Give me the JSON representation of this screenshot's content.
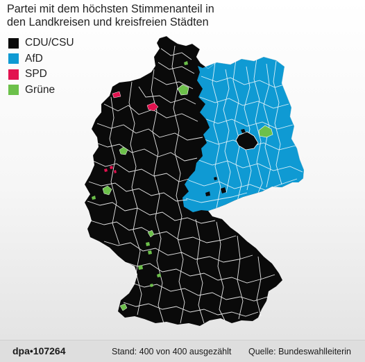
{
  "title_line1": "Partei mit dem höchsten Stimmenanteil in",
  "title_line2": "den Landkreisen und kreisfreien Städten",
  "legend": [
    {
      "label": "CDU/CSU",
      "color": "#0a0a0a"
    },
    {
      "label": "AfD",
      "color": "#0f9ad3"
    },
    {
      "label": "SPD",
      "color": "#e2124f"
    },
    {
      "label": "Grüne",
      "color": "#6cc04a"
    }
  ],
  "footer": {
    "credit": "dpa•107264",
    "status": "Stand: 400 von 400 ausgezählt",
    "source": "Quelle: Bundeswahlleiterin"
  },
  "colors": {
    "cdu": "#0a0a0a",
    "afd": "#0f9ad3",
    "spd": "#e2124f",
    "gruene": "#6cc04a",
    "borders": "#ffffff"
  }
}
